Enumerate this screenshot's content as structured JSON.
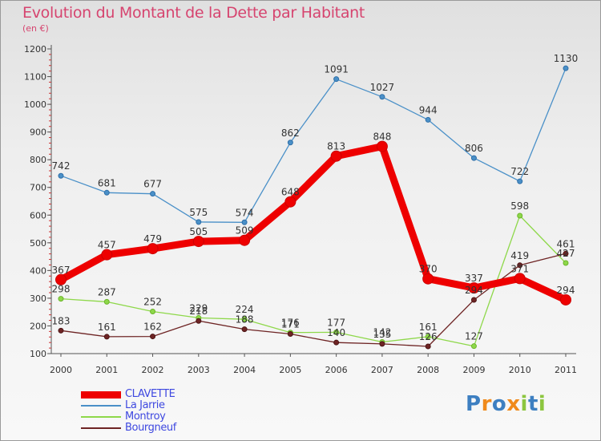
{
  "title": "Evolution du Montant de la Dette par Habitant",
  "subtitle": "(en €)",
  "logo": {
    "text": "Proxiti",
    "letters": [
      {
        "ch": "P",
        "color": "#3d7fc1"
      },
      {
        "ch": "r",
        "color": "#f08a1c"
      },
      {
        "ch": "o",
        "color": "#3d7fc1"
      },
      {
        "ch": "x",
        "color": "#f08a1c"
      },
      {
        "ch": "i",
        "color": "#8cc63f"
      },
      {
        "ch": "t",
        "color": "#3d7fc1"
      },
      {
        "ch": "i",
        "color": "#8cc63f"
      }
    ]
  },
  "chart_data": {
    "type": "line",
    "title": "Evolution du Montant de la Dette par Habitant",
    "subtitle": "(en €)",
    "x": [
      "2000",
      "2001",
      "2002",
      "2003",
      "2004",
      "2005",
      "2006",
      "2007",
      "2008",
      "2009",
      "2010",
      "2011"
    ],
    "ylim": [
      100,
      1200
    ],
    "yticks": [
      100,
      200,
      300,
      400,
      500,
      600,
      700,
      800,
      900,
      1000,
      1100,
      1200
    ],
    "grid": false,
    "legend_position": "bottom-left",
    "series": [
      {
        "name": "CLAVETTE",
        "color": "#ee0000",
        "highlight": true,
        "values": [
          367,
          457,
          479,
          505,
          509,
          648,
          813,
          848,
          370,
          337,
          371,
          294
        ],
        "labels": [
          "367",
          "457",
          "479",
          "505",
          "509",
          "648",
          "813",
          "848",
          "370",
          "337",
          "371",
          "294"
        ]
      },
      {
        "name": "La Jarrie",
        "color": "#4a90c8",
        "values": [
          742,
          681,
          677,
          575,
          574,
          862,
          1091,
          1027,
          944,
          806,
          722,
          1130
        ],
        "labels": [
          "742",
          "681",
          "677",
          "575",
          "574",
          "862",
          "1091",
          "1027",
          "944",
          "806",
          "722",
          "1130"
        ]
      },
      {
        "name": "Montroy",
        "color": "#8ed84a",
        "values": [
          298,
          287,
          252,
          229,
          224,
          176,
          177,
          142,
          161,
          127,
          598,
          427
        ],
        "labels": [
          "298",
          "287",
          "252",
          "229",
          "224",
          "176",
          "177",
          "142",
          "161",
          "127",
          "598",
          "427"
        ]
      },
      {
        "name": "Bourgneuf",
        "color": "#6e2424",
        "values": [
          183,
          161,
          162,
          218,
          188,
          171,
          140,
          135,
          126,
          294,
          419,
          461
        ],
        "labels": [
          "183",
          "161",
          "162",
          "218",
          "188",
          "171",
          "140",
          "135",
          "126",
          "294",
          "419",
          "461"
        ]
      }
    ]
  }
}
